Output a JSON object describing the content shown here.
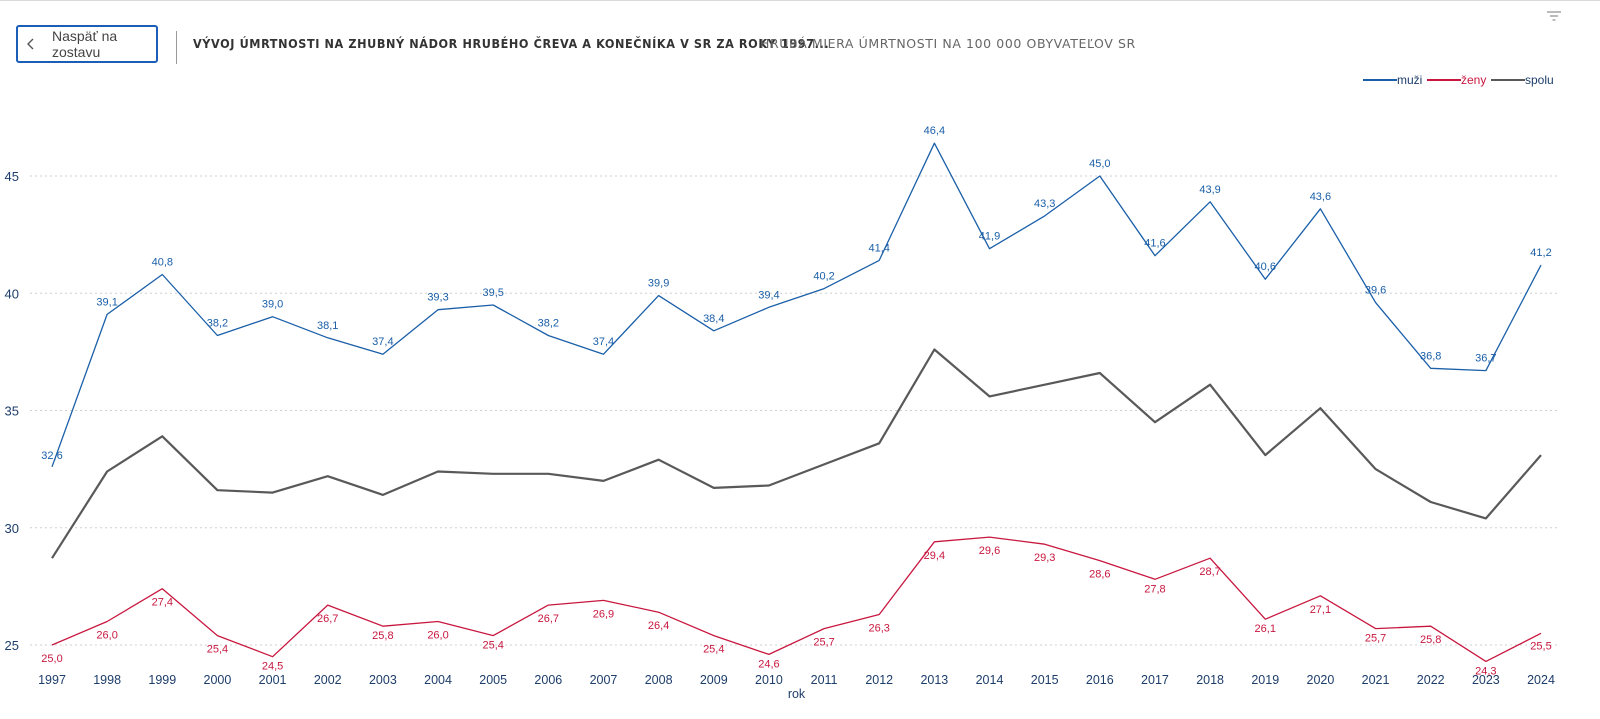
{
  "header": {
    "back_label": "Naspäť na zostavu",
    "title": "VÝVOJ ÚMRTNOSTI NA ZHUBNÝ NÁDOR HRUBÉHO ČREVA A KONEČNÍKA V SR ZA ROKY 1997...",
    "subtitle": "HRUBÁ MIERA ÚMRTNOSTI NA 100 000 OBYVATEĽOV SR"
  },
  "colors": {
    "muzi": "#1a5fa8",
    "zeny": "#c8173f",
    "spolu": "#595959",
    "axis_text": "#1d3d6b"
  },
  "chart_data": {
    "type": "line",
    "title": "VÝVOJ ÚMRTNOSTI NA ZHUBNÝ NÁDOR HRUBÉHO ČREVA A KONEČNÍKA V SR ZA ROKY 1997...",
    "xlabel": "rok",
    "ylabel": "",
    "ylim": [
      24.5,
      47.5
    ],
    "yticks": [
      25,
      30,
      35,
      40,
      45
    ],
    "grid": true,
    "legend_position": "top-right",
    "categories": [
      "1997",
      "1998",
      "1999",
      "2000",
      "2001",
      "2002",
      "2003",
      "2004",
      "2005",
      "2006",
      "2007",
      "2008",
      "2009",
      "2010",
      "2011",
      "2012",
      "2013",
      "2014",
      "2015",
      "2016",
      "2017",
      "2018",
      "2019",
      "2020",
      "2021",
      "2022",
      "2023",
      "2024"
    ],
    "series": [
      {
        "name": "muži",
        "key": "muzi",
        "show_labels": true,
        "values": [
          32.6,
          39.1,
          40.8,
          38.2,
          39.0,
          38.1,
          37.4,
          39.3,
          39.5,
          38.2,
          37.4,
          39.9,
          38.4,
          39.4,
          40.2,
          41.4,
          46.4,
          41.9,
          43.3,
          45.0,
          41.6,
          43.9,
          40.6,
          43.6,
          39.6,
          36.8,
          36.7,
          41.2
        ],
        "labels": [
          "32,6",
          "39,1",
          "40,8",
          "38,2",
          "39,0",
          "38,1",
          "37,4",
          "39,3",
          "39,5",
          "38,2",
          "37,4",
          "39,9",
          "38,4",
          "39,4",
          "40,2",
          "41,4",
          "46,4",
          "41,9",
          "43,3",
          "45,0",
          "41,6",
          "43,9",
          "40,6",
          "43,6",
          "39,6",
          "36,8",
          "36,7",
          "41,2"
        ]
      },
      {
        "name": "ženy",
        "key": "zeny",
        "show_labels": true,
        "values": [
          25.0,
          26.0,
          27.4,
          25.4,
          24.5,
          26.7,
          25.8,
          26.0,
          25.4,
          26.7,
          26.9,
          26.4,
          25.4,
          24.6,
          25.7,
          26.3,
          29.4,
          29.6,
          29.3,
          28.6,
          27.8,
          28.7,
          26.1,
          27.1,
          25.7,
          25.8,
          24.3,
          25.5
        ],
        "labels": [
          "25,0",
          "26,0",
          "27,4",
          "25,4",
          "24,5",
          "26,7",
          "25,8",
          "26,0",
          "25,4",
          "26,7",
          "26,9",
          "26,4",
          "25,4",
          "24,6",
          "25,7",
          "26,3",
          "29,4",
          "29,6",
          "29,3",
          "28,6",
          "27,8",
          "28,7",
          "26,1",
          "27,1",
          "25,7",
          "25,8",
          "24,3",
          "25,5"
        ]
      },
      {
        "name": "spolu",
        "key": "spolu",
        "show_labels": false,
        "values": [
          28.7,
          32.4,
          33.9,
          31.6,
          31.5,
          32.2,
          31.4,
          32.4,
          32.3,
          32.3,
          32.0,
          32.9,
          31.7,
          31.8,
          32.7,
          33.6,
          37.6,
          35.6,
          36.1,
          36.6,
          34.5,
          36.1,
          33.1,
          35.1,
          32.5,
          31.1,
          30.4,
          33.1
        ]
      }
    ]
  }
}
